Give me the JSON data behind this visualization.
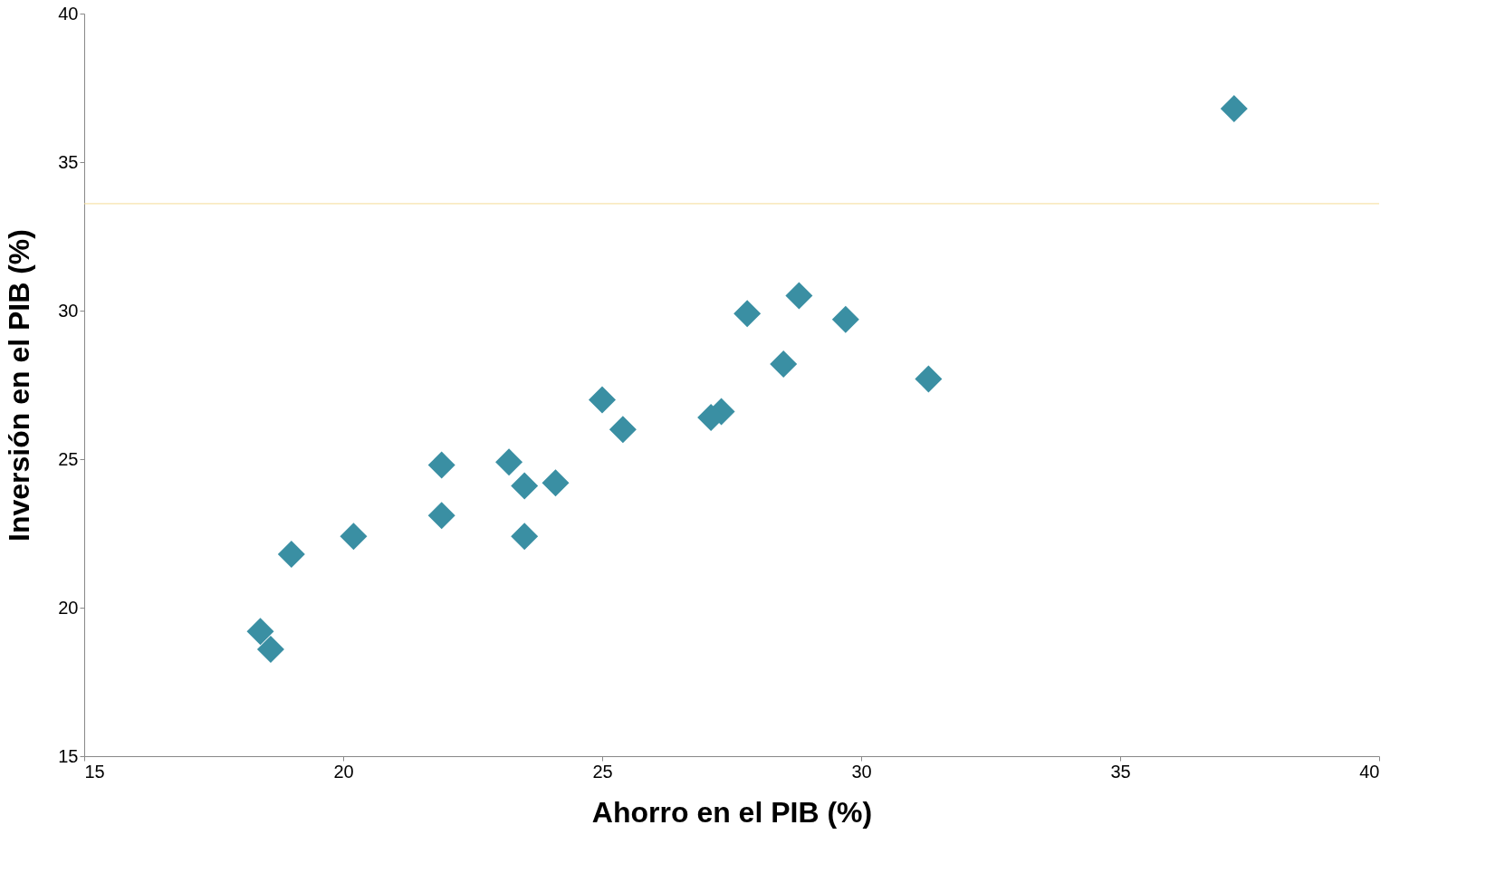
{
  "chart_data": {
    "type": "scatter",
    "xlabel": "Ahorro en el PIB (%)",
    "ylabel": "Inversión en el PIB (%)",
    "x": [
      37.2,
      28.8,
      27.8,
      29.7,
      28.5,
      31.3,
      25.0,
      25.4,
      27.3,
      27.1,
      21.9,
      23.2,
      23.5,
      24.1,
      21.9,
      23.5,
      20.2,
      19.0,
      18.4,
      18.6
    ],
    "series": [
      {
        "color": "#3a8fa3",
        "values": [
          36.8,
          30.5,
          29.9,
          29.7,
          28.2,
          27.7,
          27.0,
          26.0,
          26.6,
          26.4,
          24.8,
          24.9,
          24.1,
          24.2,
          23.1,
          22.4,
          22.4,
          21.8,
          19.2,
          18.6
        ]
      }
    ],
    "xlim": [
      15,
      40
    ],
    "xticks": [
      15,
      20,
      25,
      30,
      35,
      40
    ],
    "ylim": [
      15,
      40
    ],
    "yticks": [
      15,
      20,
      25,
      30,
      35,
      40
    ],
    "ref_lines": [
      {
        "axis": "y",
        "value": 33.6,
        "color": "#f5dc96"
      }
    ],
    "marker": "diamond",
    "grid": false
  }
}
